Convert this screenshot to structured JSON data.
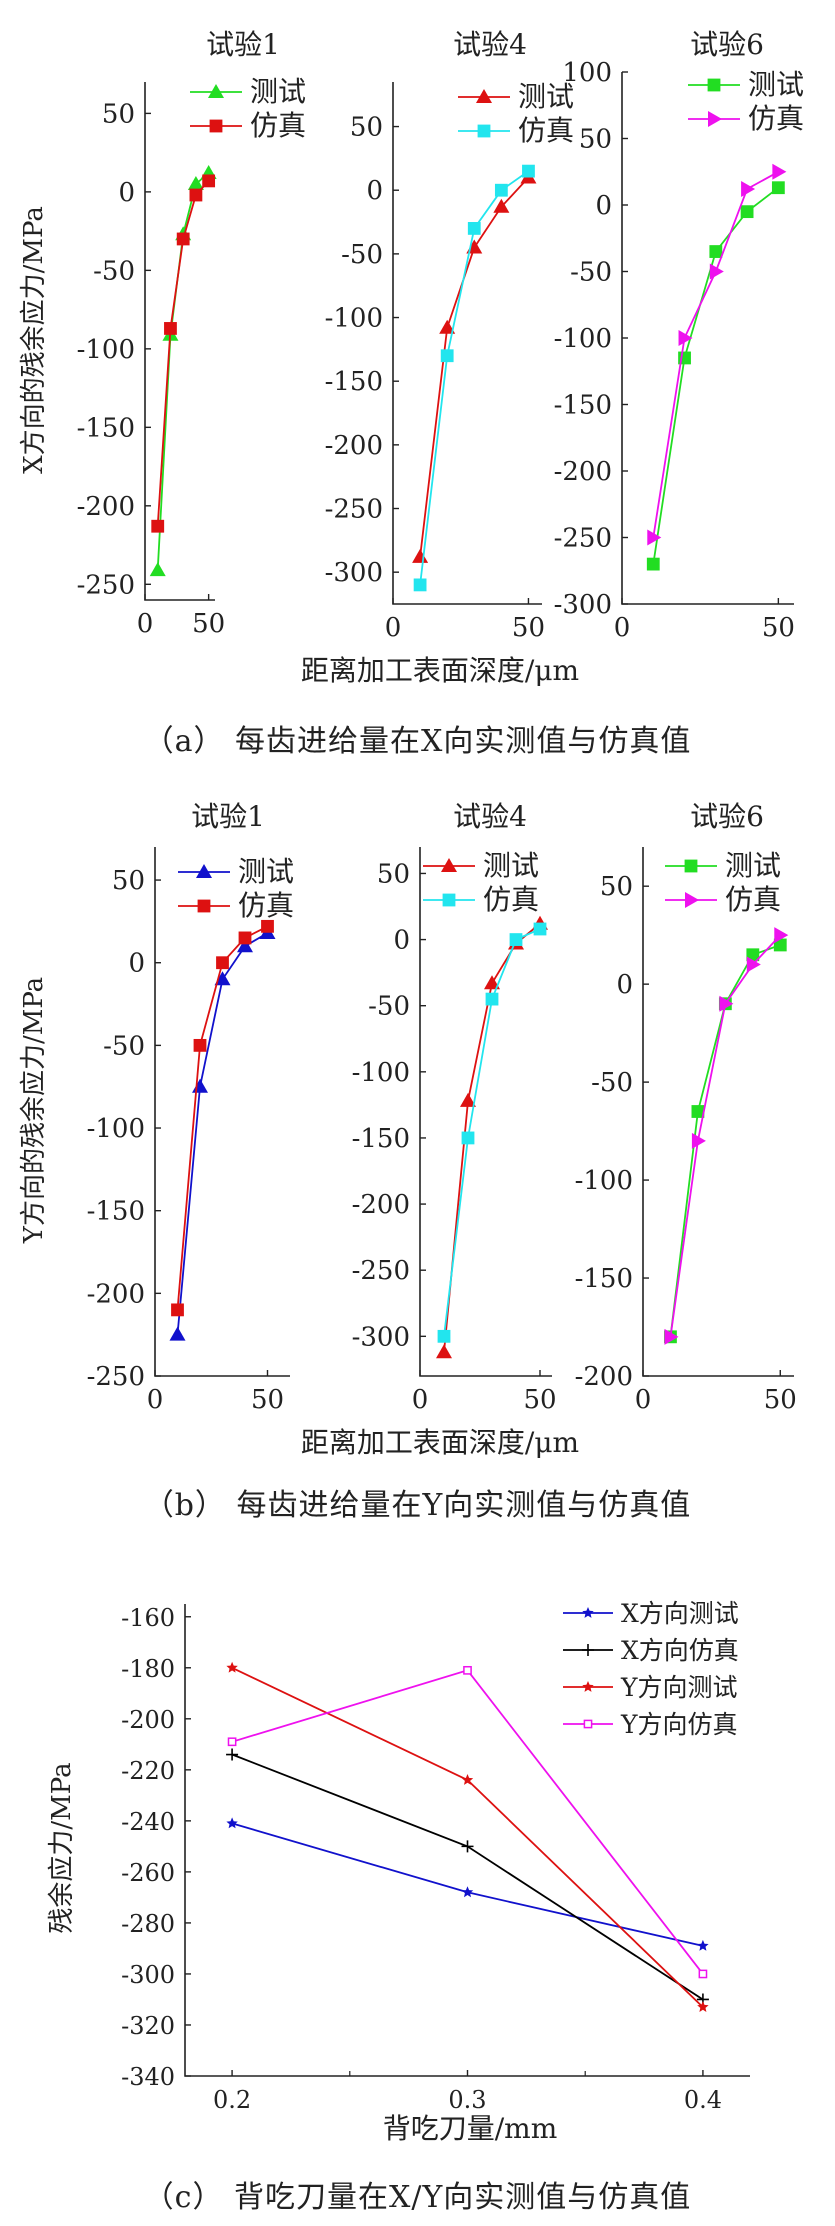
{
  "figure": {
    "captions": [
      {
        "prefix": "（a）",
        "text": "每齿进给量在X向实测值与仿真值"
      },
      {
        "prefix": "（b）",
        "text": "每齿进给量在Y向实测值与仿真值"
      },
      {
        "prefix": "（c）",
        "text": "背吃刀量在X/Y向实测值与仿真值"
      }
    ],
    "colors": {
      "axis": "#222222",
      "green": "#22dd22",
      "red": "#dd1111",
      "cyan": "#22e5ee",
      "magenta": "#ee11ee",
      "blue": "#1111cc",
      "black": "#000000"
    }
  },
  "chart_data": [
    {
      "type": "line",
      "group": "a",
      "title": "试验1",
      "ylabel": "X方向的残余应力/MPa",
      "xlabel": "距离加工表面深度/μm",
      "xlim": [
        0,
        55
      ],
      "ylim": [
        -260,
        70
      ],
      "xticks": [
        0,
        50
      ],
      "yticks": [
        50,
        0,
        -50,
        -100,
        -150,
        -200,
        -250
      ],
      "legend_position": "top-right",
      "series": [
        {
          "name": "测试",
          "color": "green",
          "marker": "triangle",
          "x": [
            10,
            20,
            30,
            40,
            50
          ],
          "y": [
            -241,
            -91,
            -27,
            5,
            12
          ]
        },
        {
          "name": "仿真",
          "color": "red",
          "marker": "square",
          "x": [
            10,
            20,
            30,
            40,
            50
          ],
          "y": [
            -213,
            -87,
            -30,
            -2,
            7
          ]
        }
      ]
    },
    {
      "type": "line",
      "group": "a",
      "title": "试验4",
      "ylabel": "",
      "xlabel": "",
      "xlim": [
        0,
        55
      ],
      "ylim": [
        -325,
        85
      ],
      "xticks": [
        0,
        50
      ],
      "yticks": [
        50,
        0,
        -50,
        -100,
        -150,
        -200,
        -250,
        -300
      ],
      "legend_position": "top-right",
      "series": [
        {
          "name": "测试",
          "color": "red",
          "marker": "triangle",
          "x": [
            10,
            20,
            30,
            40,
            50
          ],
          "y": [
            -288,
            -108,
            -45,
            -13,
            10
          ]
        },
        {
          "name": "仿真",
          "color": "cyan",
          "marker": "square",
          "x": [
            10,
            20,
            30,
            40,
            50
          ],
          "y": [
            -310,
            -130,
            -30,
            0,
            15
          ]
        }
      ]
    },
    {
      "type": "line",
      "group": "a",
      "title": "试验6",
      "ylabel": "",
      "xlabel": "",
      "xlim": [
        0,
        55
      ],
      "ylim": [
        -300,
        100
      ],
      "xticks": [
        0,
        50
      ],
      "yticks": [
        100,
        50,
        0,
        -50,
        -100,
        -150,
        -200,
        -250,
        -300
      ],
      "legend_position": "top-right",
      "series": [
        {
          "name": "测试",
          "color": "green",
          "marker": "square",
          "x": [
            10,
            20,
            30,
            40,
            50
          ],
          "y": [
            -270,
            -115,
            -35,
            -5,
            13
          ]
        },
        {
          "name": "仿真",
          "color": "magenta",
          "marker": "triangle-right",
          "x": [
            10,
            20,
            30,
            40,
            50
          ],
          "y": [
            -250,
            -100,
            -50,
            12,
            25
          ]
        }
      ]
    },
    {
      "type": "line",
      "group": "b",
      "title": "试验1",
      "ylabel": "Y方向的残余应力/MPa",
      "xlabel": "距离加工表面深度/μm",
      "xlim": [
        0,
        60
      ],
      "ylim": [
        -250,
        70
      ],
      "xticks": [
        0,
        50
      ],
      "yticks": [
        50,
        0,
        -50,
        -100,
        -150,
        -200,
        -250
      ],
      "legend_position": "top-right",
      "series": [
        {
          "name": "测试",
          "color": "blue",
          "marker": "triangle",
          "x": [
            10,
            20,
            30,
            40,
            50
          ],
          "y": [
            -225,
            -75,
            -10,
            10,
            18
          ]
        },
        {
          "name": "仿真",
          "color": "red",
          "marker": "square",
          "x": [
            10,
            20,
            30,
            40,
            50
          ],
          "y": [
            -210,
            -50,
            0,
            15,
            22
          ]
        }
      ]
    },
    {
      "type": "line",
      "group": "b",
      "title": "试验4",
      "ylabel": "",
      "xlabel": "",
      "xlim": [
        0,
        55
      ],
      "ylim": [
        -330,
        70
      ],
      "xticks": [
        0,
        50
      ],
      "yticks": [
        50,
        0,
        -50,
        -100,
        -150,
        -200,
        -250,
        -300
      ],
      "legend_position": "top-right",
      "series": [
        {
          "name": "测试",
          "color": "red",
          "marker": "triangle",
          "x": [
            10,
            20,
            30,
            40,
            50
          ],
          "y": [
            -312,
            -122,
            -33,
            -3,
            12
          ]
        },
        {
          "name": "仿真",
          "color": "cyan",
          "marker": "square",
          "x": [
            10,
            20,
            30,
            40,
            50
          ],
          "y": [
            -300,
            -150,
            -45,
            0,
            8
          ]
        }
      ]
    },
    {
      "type": "line",
      "group": "b",
      "title": "试验6",
      "ylabel": "",
      "xlabel": "",
      "xlim": [
        0,
        55
      ],
      "ylim": [
        -200,
        70
      ],
      "xticks": [
        0,
        50
      ],
      "yticks": [
        50,
        0,
        -50,
        -100,
        -150,
        -200
      ],
      "legend_position": "top-right",
      "series": [
        {
          "name": "测试",
          "color": "green",
          "marker": "square",
          "x": [
            10,
            20,
            30,
            40,
            50
          ],
          "y": [
            -180,
            -65,
            -10,
            15,
            20
          ]
        },
        {
          "name": "仿真",
          "color": "magenta",
          "marker": "triangle-right",
          "x": [
            10,
            20,
            30,
            40,
            50
          ],
          "y": [
            -180,
            -80,
            -10,
            10,
            25
          ]
        }
      ]
    },
    {
      "type": "line",
      "group": "c",
      "title": "",
      "ylabel": "残余应力/MPa",
      "xlabel": "背吃刀量/mm",
      "xlim": [
        0.18,
        0.42
      ],
      "ylim": [
        -340,
        -155
      ],
      "xticks": [
        0.2,
        0.3,
        0.4
      ],
      "yticks": [
        -160,
        -180,
        -200,
        -220,
        -240,
        -260,
        -280,
        -300,
        -320,
        -340
      ],
      "legend_position": "top-right",
      "series": [
        {
          "name": "X方向测试",
          "color": "blue",
          "marker": "star",
          "x": [
            0.2,
            0.3,
            0.4
          ],
          "y": [
            -241,
            -268,
            -289
          ]
        },
        {
          "name": "X方向仿真",
          "color": "black",
          "marker": "plus",
          "x": [
            0.2,
            0.3,
            0.4
          ],
          "y": [
            -214,
            -250,
            -310
          ]
        },
        {
          "name": "Y方向测试",
          "color": "red",
          "marker": "star",
          "x": [
            0.2,
            0.3,
            0.4
          ],
          "y": [
            -180,
            -224,
            -313
          ]
        },
        {
          "name": "Y方向仿真",
          "color": "magenta",
          "marker": "square-open",
          "x": [
            0.2,
            0.3,
            0.4
          ],
          "y": [
            -209,
            -181,
            -300
          ]
        }
      ]
    }
  ]
}
